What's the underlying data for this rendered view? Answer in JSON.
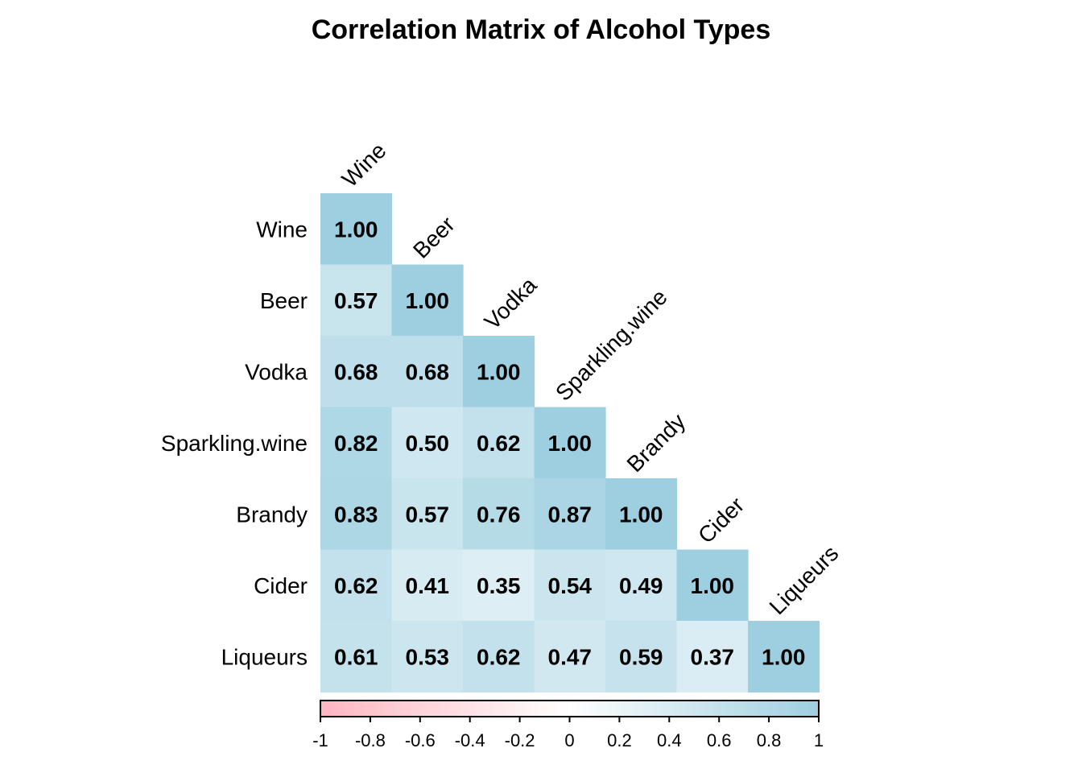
{
  "chart_data": {
    "type": "heatmap",
    "title": "Correlation Matrix of Alcohol Types",
    "variables": [
      "Wine",
      "Beer",
      "Vodka",
      "Sparkling.wine",
      "Brandy",
      "Cider",
      "Liqueurs"
    ],
    "triangle": "lower",
    "matrix": [
      [
        1.0
      ],
      [
        0.57,
        1.0
      ],
      [
        0.68,
        0.68,
        1.0
      ],
      [
        0.82,
        0.5,
        0.62,
        1.0
      ],
      [
        0.83,
        0.57,
        0.76,
        0.87,
        1.0
      ],
      [
        0.62,
        0.41,
        0.35,
        0.54,
        0.49,
        1.0
      ],
      [
        0.61,
        0.53,
        0.62,
        0.47,
        0.59,
        0.37,
        1.0
      ]
    ],
    "color_scale": {
      "min": -1,
      "max": 1,
      "low_color": "#FFB6C1",
      "mid_color": "#FFFFFF",
      "high_color": "#9ECFE0"
    },
    "colorbar_ticks": [
      "-1",
      "-0.8",
      "-0.6",
      "-0.4",
      "-0.2",
      "0",
      "0.2",
      "0.4",
      "0.6",
      "0.8",
      "1"
    ],
    "legend_position": "bottom"
  }
}
